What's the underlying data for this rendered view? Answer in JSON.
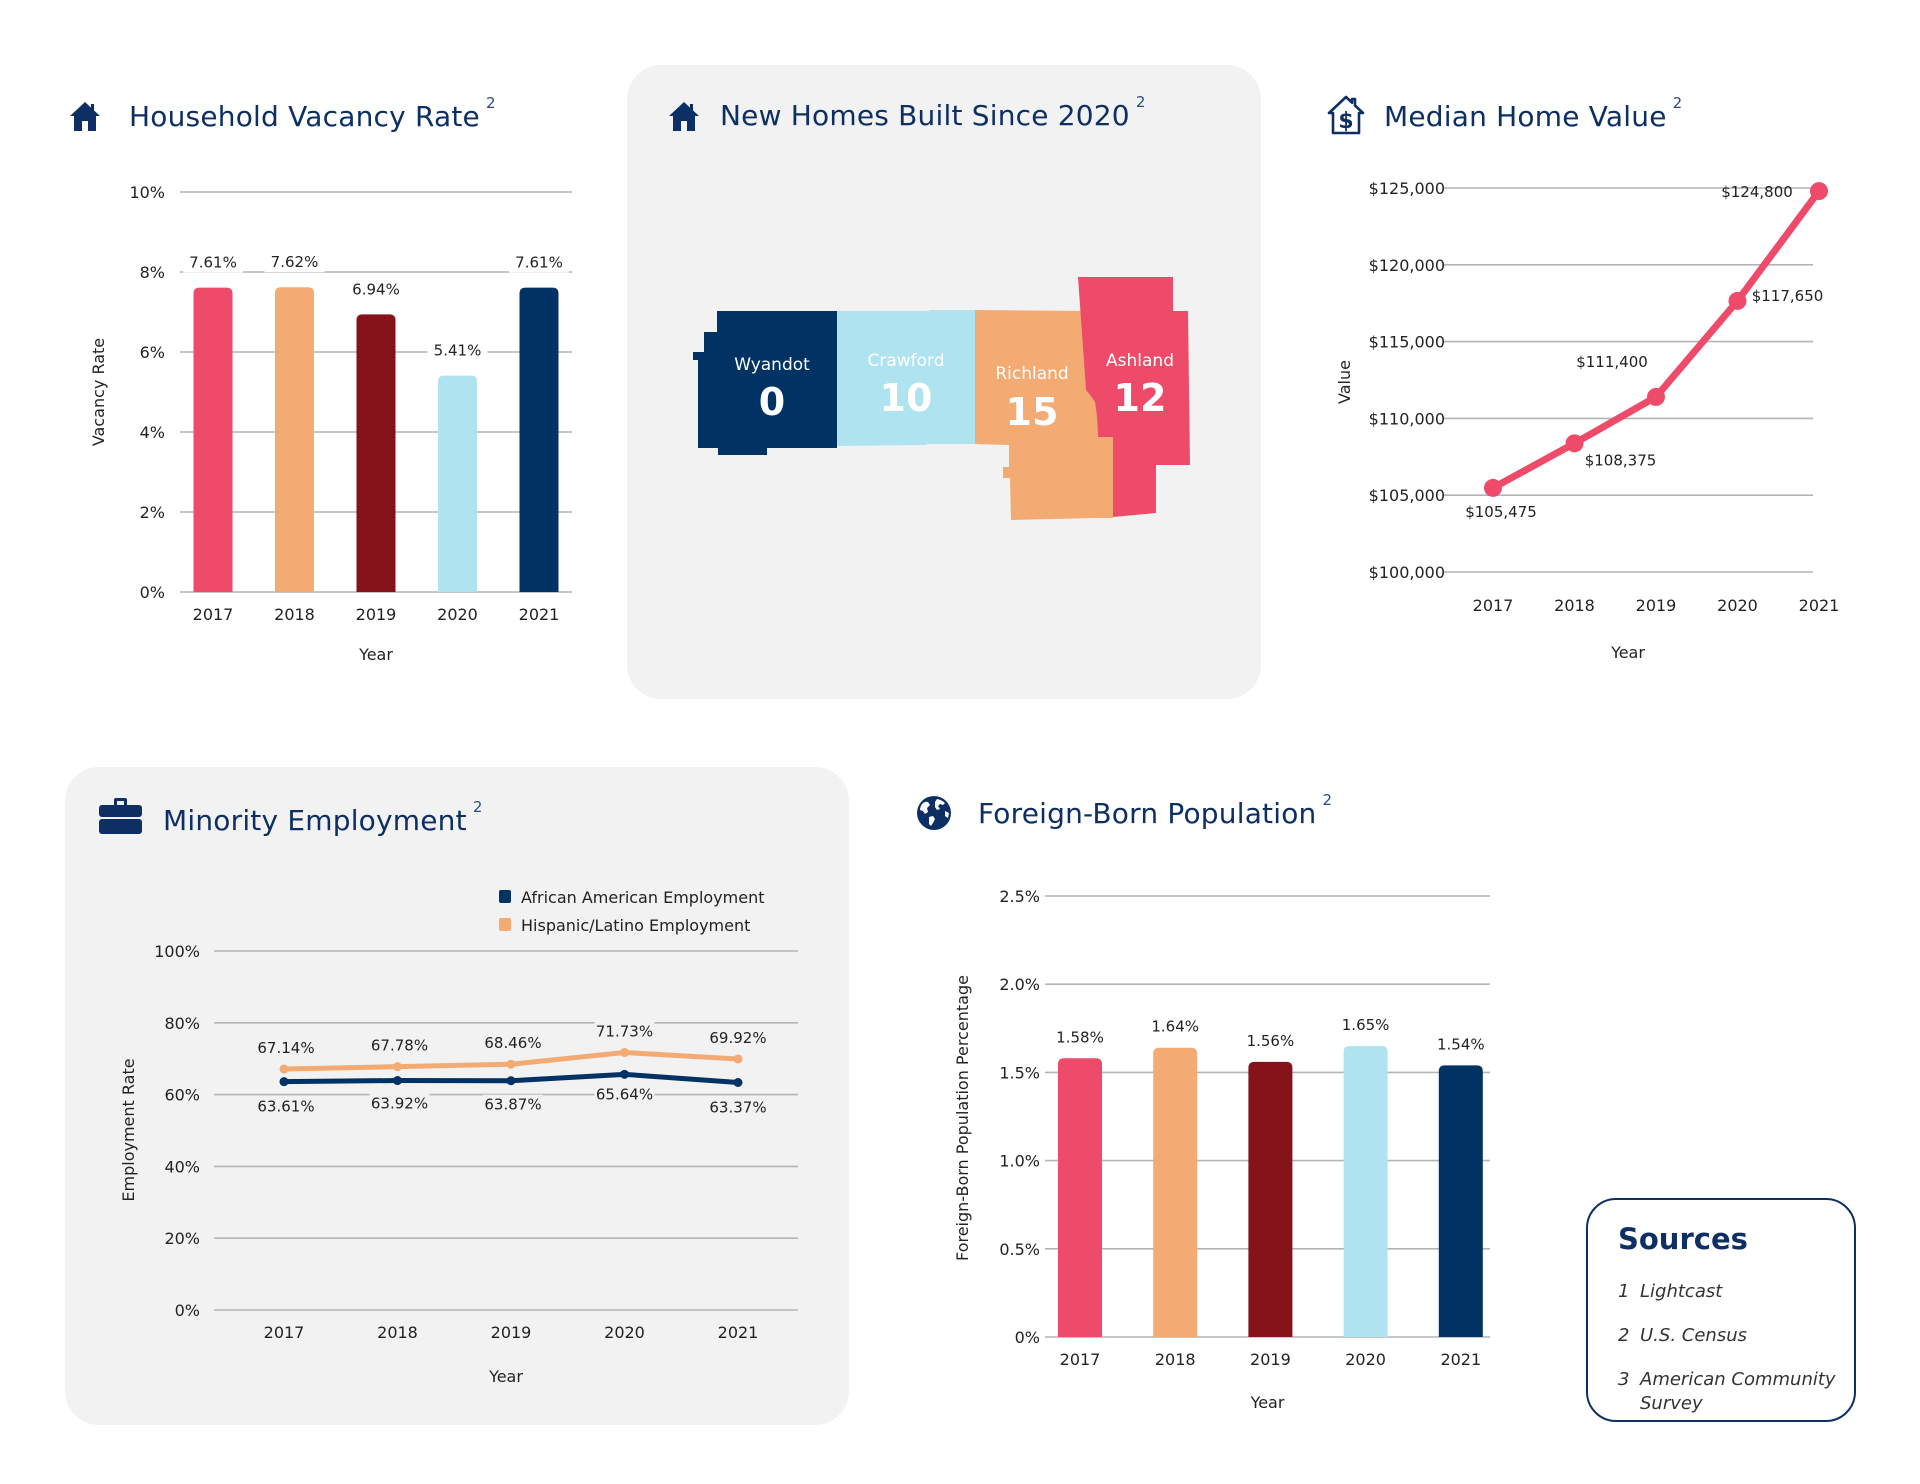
{
  "colors": {
    "pink": "#ee4b6b",
    "orange": "#f4ab73",
    "maroon": "#86131a",
    "light_blue": "#b0e3f0",
    "navy": "#003264",
    "title": "#0d2f63",
    "grid": "#b4b4b4",
    "panel": "#f2f2f2"
  },
  "sections": {
    "vacancy": {
      "title": "Household Vacancy Rate",
      "source_ref": "2",
      "icon": "house-icon"
    },
    "new_homes": {
      "title": "New Homes Built Since 2020",
      "source_ref": "2",
      "icon": "house-icon"
    },
    "home_value": {
      "title": "Median Home Value",
      "source_ref": "2",
      "icon": "house-dollar-icon"
    },
    "employment": {
      "title": "Minority Employment",
      "source_ref": "2",
      "icon": "briefcase-icon"
    },
    "foreign": {
      "title": "Foreign-Born Population",
      "source_ref": "2",
      "icon": "globe-icon"
    }
  },
  "new_homes_map": {
    "counties": [
      {
        "name": "Wyandot",
        "value": "0",
        "color": "#003264"
      },
      {
        "name": "Crawford",
        "value": "10",
        "color": "#b0e3f0"
      },
      {
        "name": "Richland",
        "value": "15",
        "color": "#f4ab73"
      },
      {
        "name": "Ashland",
        "value": "12",
        "color": "#ee4b6b"
      }
    ]
  },
  "sources": {
    "title": "Sources",
    "items": [
      {
        "num": "1",
        "text": "Lightcast"
      },
      {
        "num": "2",
        "text": "U.S. Census"
      },
      {
        "num": "3",
        "text": "American Community Survey"
      }
    ]
  },
  "chart_data": [
    {
      "id": "vacancy",
      "type": "bar",
      "title": "Household Vacancy Rate",
      "xlabel": "Year",
      "ylabel": "Vacancy Rate",
      "categories": [
        "2017",
        "2018",
        "2019",
        "2020",
        "2021"
      ],
      "values": [
        7.61,
        7.62,
        6.94,
        5.41,
        7.61
      ],
      "data_labels": [
        "7.61%",
        "7.62%",
        "6.94%",
        "5.41%",
        "7.61%"
      ],
      "bar_colors": [
        "#ee4b6b",
        "#f4ab73",
        "#86131a",
        "#b0e3f0",
        "#003264"
      ],
      "ylim": [
        0,
        10
      ],
      "yticks": [
        0,
        2,
        4,
        6,
        8,
        10
      ],
      "ytick_labels": [
        "0%",
        "2%",
        "4%",
        "6%",
        "8%",
        "10%"
      ],
      "grid": true,
      "legend": "none"
    },
    {
      "id": "home_value",
      "type": "line",
      "title": "Median Home Value",
      "xlabel": "Year",
      "ylabel": "Value",
      "x": [
        "2017",
        "2018",
        "2019",
        "2020",
        "2021"
      ],
      "series": [
        {
          "name": "Median Home Value",
          "color": "#ee4b6b",
          "values": [
            105475,
            108375,
            111400,
            117650,
            124800
          ],
          "data_labels": [
            "$105,475",
            "$108,375",
            "$111,400",
            "$117,650",
            "$124,800"
          ]
        }
      ],
      "ylim": [
        100000,
        125000
      ],
      "yticks": [
        100000,
        105000,
        110000,
        115000,
        120000,
        125000
      ],
      "ytick_labels": [
        "$100,000",
        "$105,000",
        "$110,000",
        "$115,000",
        "$120,000",
        "$125,000"
      ],
      "grid": true,
      "legend": "none"
    },
    {
      "id": "employment",
      "type": "line",
      "title": "Minority Employment",
      "xlabel": "Year",
      "ylabel": "Employment Rate",
      "x": [
        "2017",
        "2018",
        "2019",
        "2020",
        "2021"
      ],
      "series": [
        {
          "name": "African American Employment",
          "color": "#003264",
          "values": [
            63.61,
            63.92,
            63.87,
            65.64,
            63.37
          ],
          "data_labels": [
            "63.61%",
            "63.92%",
            "63.87%",
            "65.64%",
            "63.37%"
          ]
        },
        {
          "name": "Hispanic/Latino Employment",
          "color": "#f4ab73",
          "values": [
            67.14,
            67.78,
            68.46,
            71.73,
            69.92
          ],
          "data_labels": [
            "67.14%",
            "67.78%",
            "68.46%",
            "71.73%",
            "69.92%"
          ]
        }
      ],
      "ylim": [
        0,
        100
      ],
      "yticks": [
        0,
        20,
        40,
        60,
        80,
        100
      ],
      "ytick_labels": [
        "0%",
        "20%",
        "40%",
        "60%",
        "80%",
        "100%"
      ],
      "grid": true,
      "legend": "top-right"
    },
    {
      "id": "foreign",
      "type": "bar",
      "title": "Foreign-Born Population",
      "xlabel": "Year",
      "ylabel": "Foreign-Born Population Percentage",
      "categories": [
        "2017",
        "2018",
        "2019",
        "2020",
        "2021"
      ],
      "values": [
        1.58,
        1.64,
        1.56,
        1.65,
        1.54
      ],
      "data_labels": [
        "1.58%",
        "1.64%",
        "1.56%",
        "1.65%",
        "1.54%"
      ],
      "bar_colors": [
        "#ee4b6b",
        "#f4ab73",
        "#86131a",
        "#b0e3f0",
        "#003264"
      ],
      "ylim": [
        0,
        2.5
      ],
      "yticks": [
        0,
        0.5,
        1.0,
        1.5,
        2.0,
        2.5
      ],
      "ytick_labels": [
        "0%",
        "0.5%",
        "1.0%",
        "1.5%",
        "2.0%",
        "2.5%"
      ],
      "grid": true,
      "legend": "none"
    }
  ]
}
